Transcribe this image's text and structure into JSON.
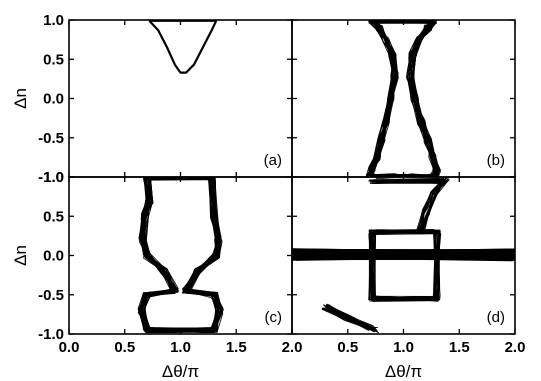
{
  "chart_data": [
    {
      "type": "line",
      "panel": "(a)",
      "xlabel": "",
      "ylabel": "Δn",
      "xlim": [
        0.0,
        2.0
      ],
      "ylim": [
        -1.0,
        1.0
      ],
      "x_ticks": [],
      "y_ticks": [
        "-1.0",
        "-0.5",
        "0.0",
        "0.5",
        "1.0"
      ],
      "series": [
        {
          "x": [
            0.72,
            0.8,
            0.88,
            0.95,
            1.0,
            1.05,
            1.12,
            1.2,
            1.28,
            1.32
          ],
          "y": [
            0.99,
            0.87,
            0.65,
            0.43,
            0.33,
            0.33,
            0.43,
            0.65,
            0.87,
            0.99
          ]
        },
        {
          "x": [
            0.72,
            1.32
          ],
          "y": [
            0.99,
            0.99
          ]
        }
      ]
    },
    {
      "type": "line",
      "panel": "(b)",
      "xlabel": "",
      "ylabel": "",
      "xlim": [
        0.0,
        2.0
      ],
      "ylim": [
        -1.0,
        1.0
      ],
      "x_ticks": [],
      "y_ticks": [],
      "series": [
        {
          "x": [
            0.72,
            0.78,
            0.85,
            0.9,
            0.92,
            0.88,
            0.84,
            0.8,
            0.76,
            0.72,
            0.7,
            0.74,
            0.9,
            1.05,
            1.2,
            1.28,
            1.3,
            1.26,
            1.22,
            1.16,
            1.1,
            1.06,
            1.08,
            1.14,
            1.22,
            1.28,
            0.72
          ],
          "y": [
            0.99,
            0.9,
            0.75,
            0.55,
            0.3,
            0.0,
            -0.3,
            -0.55,
            -0.75,
            -0.9,
            -0.98,
            -1.0,
            -0.99,
            -0.99,
            -1.0,
            -0.98,
            -0.9,
            -0.75,
            -0.55,
            -0.3,
            0.0,
            0.3,
            0.55,
            0.75,
            0.9,
            0.99,
            0.99
          ]
        }
      ]
    },
    {
      "type": "line",
      "panel": "(c)",
      "xlabel": "Δθ/π",
      "ylabel": "Δn",
      "xlim": [
        0.0,
        2.0
      ],
      "ylim": [
        -1.0,
        1.0
      ],
      "x_ticks": [
        "0.0",
        "0.5",
        "1.0",
        "1.5",
        "2.0"
      ],
      "y_ticks": [
        "-1.0",
        "-0.5",
        "0.0",
        "0.5",
        "1.0"
      ],
      "series": [
        {
          "x": [
            0.7,
            0.72,
            0.68,
            0.66,
            0.7,
            0.85,
            0.95,
            0.7,
            0.65,
            0.7,
            1.3,
            1.35,
            1.3,
            1.05,
            1.15,
            1.32,
            1.34,
            1.3,
            1.28,
            0.7
          ],
          "y": [
            0.99,
            0.7,
            0.5,
            0.2,
            0.0,
            -0.2,
            -0.45,
            -0.5,
            -0.7,
            -0.95,
            -0.95,
            -0.7,
            -0.5,
            -0.45,
            -0.2,
            0.0,
            0.2,
            0.5,
            0.99,
            0.99
          ]
        }
      ]
    },
    {
      "type": "line",
      "panel": "(d)",
      "xlabel": "Δθ/π",
      "ylabel": "",
      "xlim": [
        0.0,
        2.0
      ],
      "ylim": [
        -1.0,
        1.0
      ],
      "x_ticks": [
        "0.5",
        "1.0",
        "1.5",
        "2.0"
      ],
      "y_ticks": [],
      "series": [
        {
          "x": [
            0.0,
            2.0
          ],
          "y": [
            0.04,
            0.04
          ]
        },
        {
          "x": [
            0.0,
            2.0
          ],
          "y": [
            -0.02,
            -0.02
          ]
        },
        {
          "x": [
            0.72,
            1.3,
            1.3,
            0.72,
            0.72
          ],
          "y": [
            0.3,
            0.3,
            -0.55,
            -0.55,
            0.3
          ]
        },
        {
          "x": [
            0.3,
            0.5,
            0.7,
            0.75
          ],
          "y": [
            -0.65,
            -0.8,
            -0.92,
            -0.95
          ]
        },
        {
          "x": [
            1.15,
            1.2,
            1.28,
            1.38
          ],
          "y": [
            0.3,
            0.55,
            0.8,
            0.98
          ]
        },
        {
          "x": [
            0.72,
            1.35
          ],
          "y": [
            0.95,
            0.95
          ]
        }
      ]
    }
  ]
}
